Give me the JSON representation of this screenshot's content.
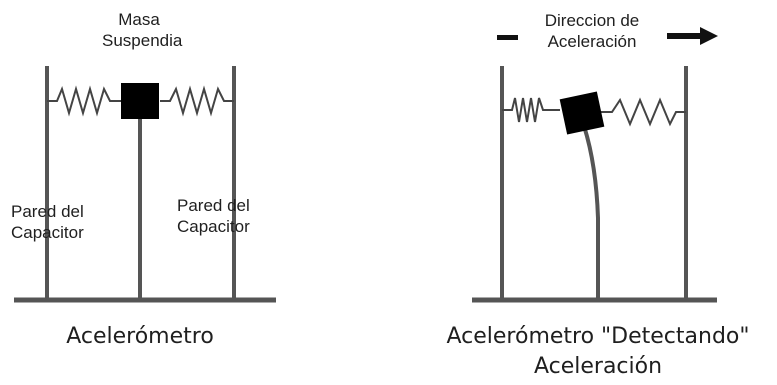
{
  "left": {
    "mass_label_line1": "Masa",
    "mass_label_line2": "Suspendia",
    "left_wall_line1": "Pared del",
    "left_wall_line2": "Capacitor",
    "right_wall_line1": "Pared del",
    "right_wall_line2": "Capacitor",
    "caption": "Acelerómetro"
  },
  "right": {
    "direction_line1": "Direccion de",
    "direction_line2": "Aceleración",
    "caption_line1": "Acelerómetro \"Detectando\"",
    "caption_line2": "Aceleración"
  },
  "colors": {
    "ink": "#1a1a1a",
    "wall": "#555555",
    "spring": "#444444"
  }
}
